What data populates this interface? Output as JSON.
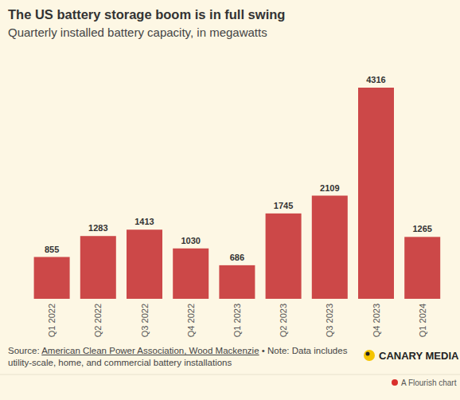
{
  "chart_data": {
    "type": "bar",
    "title": "The US battery storage boom is in full swing",
    "subtitle": "Quarterly installed battery capacity, in megawatts",
    "categories": [
      "Q1 2022",
      "Q2 2022",
      "Q3 2022",
      "Q4 2022",
      "Q1 2023",
      "Q2 2023",
      "Q3 2023",
      "Q4 2023",
      "Q1 2024"
    ],
    "values": [
      855,
      1283,
      1413,
      1030,
      686,
      1745,
      2109,
      4316,
      1265
    ],
    "color": "#cc4848",
    "ylim": [
      0,
      4316
    ],
    "grid": false,
    "data_labels": true,
    "tick_labels": "x",
    "source_label": "Source:",
    "source": "American Clean Power Association, Wood Mackenzie",
    "separator": "•",
    "note": "Note: Data includes utility-scale, home, and commercial battery installations",
    "brand": "CANARY MEDIA",
    "footer": "A Flourish chart"
  }
}
